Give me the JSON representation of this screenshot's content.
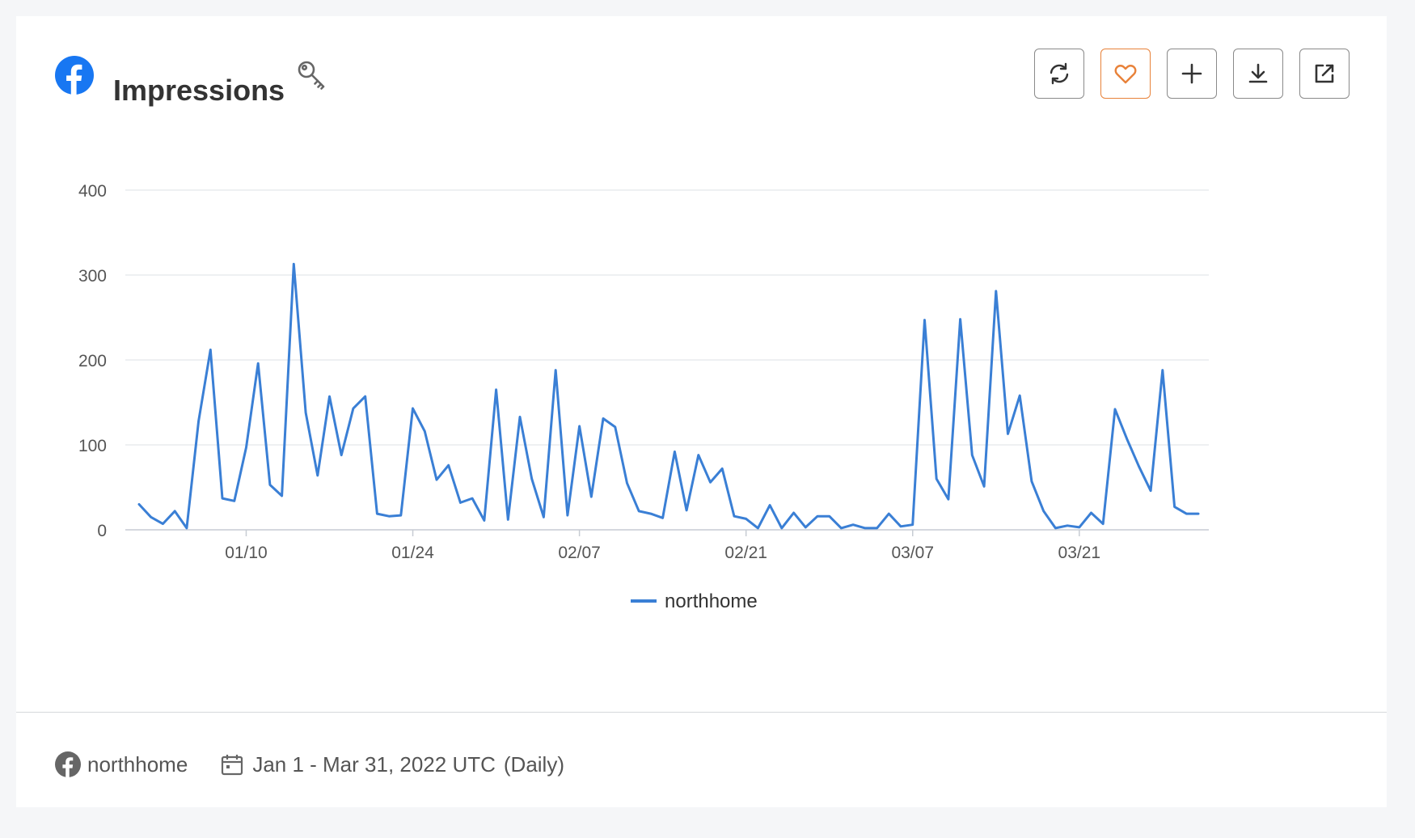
{
  "header": {
    "title": "Impressions",
    "icons": {
      "platform": "facebook-icon",
      "key": "key-icon"
    },
    "toolbar": [
      {
        "name": "refresh-button",
        "icon": "refresh-icon"
      },
      {
        "name": "favorite-button",
        "icon": "heart-icon"
      },
      {
        "name": "add-button",
        "icon": "plus-icon"
      },
      {
        "name": "download-button",
        "icon": "download-icon"
      },
      {
        "name": "open-external-button",
        "icon": "external-link-icon"
      }
    ]
  },
  "colors": {
    "series": "#3a7fd5",
    "facebook": "#1877f2",
    "favorite_accent": "#e8823a",
    "grid": "#e3e6ea"
  },
  "chart_data": {
    "type": "line",
    "title": "",
    "xlabel": "",
    "ylabel": "",
    "ylim": [
      0,
      400
    ],
    "yticks": [
      0,
      100,
      200,
      300,
      400
    ],
    "x_start": "2022-01-01",
    "x_end": "2022-03-31",
    "xtick_labels": [
      {
        "date": "2022-01-10",
        "label": "01/10"
      },
      {
        "date": "2022-01-24",
        "label": "01/24"
      },
      {
        "date": "2022-02-07",
        "label": "02/07"
      },
      {
        "date": "2022-02-21",
        "label": "02/21"
      },
      {
        "date": "2022-03-07",
        "label": "03/07"
      },
      {
        "date": "2022-03-21",
        "label": "03/21"
      }
    ],
    "grid": true,
    "legend_position": "bottom-center",
    "series": [
      {
        "name": "northhome",
        "values": [
          30,
          15,
          7,
          22,
          2,
          128,
          212,
          37,
          34,
          97,
          196,
          53,
          40,
          313,
          138,
          64,
          157,
          88,
          143,
          157,
          19,
          16,
          17,
          143,
          116,
          59,
          76,
          32,
          37,
          11,
          165,
          12,
          133,
          60,
          15,
          188,
          17,
          122,
          39,
          131,
          121,
          55,
          22,
          19,
          14,
          92,
          23,
          88,
          56,
          72,
          16,
          13,
          2,
          29,
          2,
          20,
          3,
          16,
          16,
          2,
          6,
          2,
          2,
          19,
          4,
          6,
          247,
          60,
          36,
          248,
          88,
          51,
          281,
          113,
          158,
          57,
          22,
          2,
          5,
          3,
          20,
          7,
          142,
          107,
          75,
          46,
          188,
          27,
          19,
          19
        ]
      }
    ]
  },
  "footer": {
    "account": "northhome",
    "date_range": "Jan 1 - Mar 31, 2022 UTC",
    "interval": "(Daily)"
  }
}
